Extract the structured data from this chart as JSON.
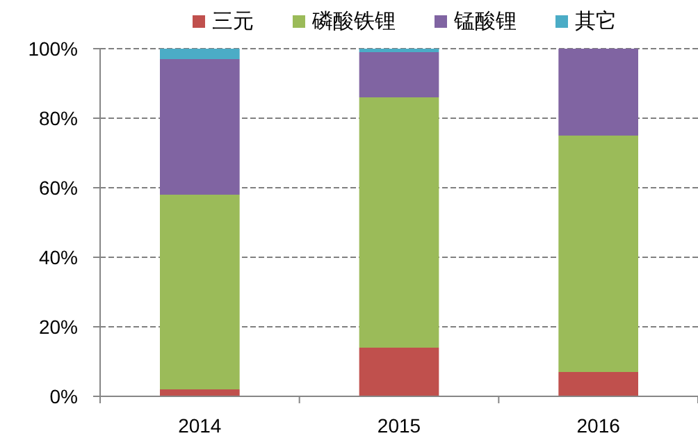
{
  "chart_data": {
    "type": "bar",
    "stacked": true,
    "categories": [
      "2014",
      "2015",
      "2016"
    ],
    "series": [
      {
        "name": "三元",
        "color": "#c0504d",
        "values": [
          2,
          14,
          7
        ]
      },
      {
        "name": "磷酸铁锂",
        "color": "#9bbb59",
        "values": [
          56,
          72,
          68
        ]
      },
      {
        "name": "锰酸锂",
        "color": "#8064a2",
        "values": [
          39,
          13,
          25
        ]
      },
      {
        "name": "其它",
        "color": "#4bacc6",
        "values": [
          3,
          1,
          0
        ]
      }
    ],
    "ylim": [
      0,
      100
    ],
    "yticks": [
      {
        "value": 0,
        "label": "0%"
      },
      {
        "value": 20,
        "label": "20%"
      },
      {
        "value": 40,
        "label": "40%"
      },
      {
        "value": 60,
        "label": "60%"
      },
      {
        "value": 80,
        "label": "80%"
      },
      {
        "value": 100,
        "label": "100%"
      }
    ],
    "grid": "y",
    "legend": "top"
  }
}
